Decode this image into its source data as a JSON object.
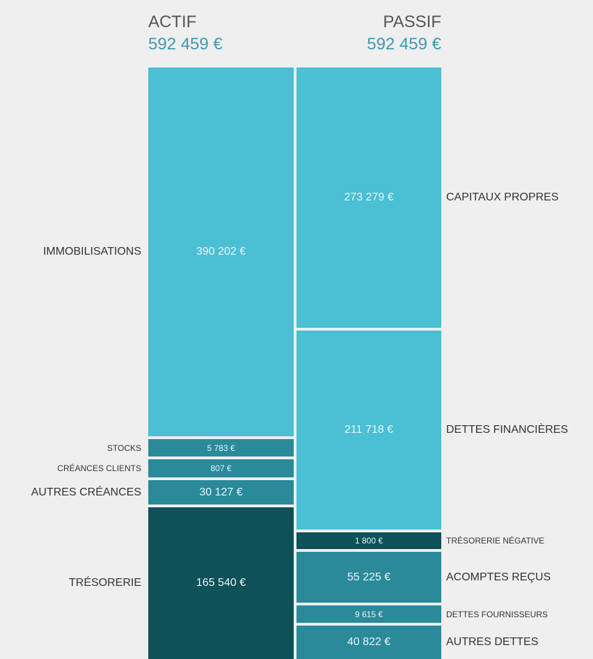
{
  "actif": {
    "title": "ACTIF",
    "total": "592 459 €",
    "items": [
      {
        "label": "IMMOBILISATIONS",
        "value": "390 202 €"
      },
      {
        "label": "STOCKS",
        "value": "5 783 €"
      },
      {
        "label": "CRÉANCES CLIENTS",
        "value": "807 €"
      },
      {
        "label": "AUTRES CRÉANCES",
        "value": "30 127 €"
      },
      {
        "label": "TRÉSORERIE",
        "value": "165 540 €"
      }
    ]
  },
  "passif": {
    "title": "PASSIF",
    "total": "592 459 €",
    "items": [
      {
        "label": "CAPITAUX PROPRES",
        "value": "273 279 €"
      },
      {
        "label": "DETTES FINANCIÈRES",
        "value": "211 718 €"
      },
      {
        "label": "TRÉSORERIE NÉGATIVE",
        "value": "1 800 €"
      },
      {
        "label": "ACOMPTES REÇUS",
        "value": "55 225 €"
      },
      {
        "label": "DETTES FOURNISSEURS",
        "value": "9 615 €"
      },
      {
        "label": "AUTRES DETTES",
        "value": "40 822 €"
      }
    ]
  }
}
